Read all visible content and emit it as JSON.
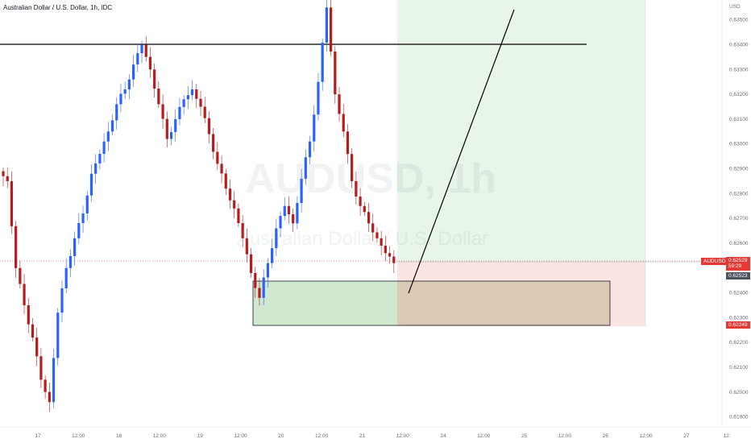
{
  "header": {
    "title": "Australian Dollar / U.S. Dollar, 1h, IDC"
  },
  "watermark": {
    "symbol": "AUDUSD, 1h",
    "name": "Australian Dollar / U.S. Dollar"
  },
  "price_axis": {
    "currency": "USD",
    "ticks": [
      "0.63500",
      "0.63400",
      "0.63300",
      "0.63200",
      "0.63100",
      "0.63000",
      "0.62900",
      "0.62800",
      "0.62700",
      "0.62600",
      "0.62400",
      "0.62300",
      "0.62200",
      "0.62100",
      "0.62000",
      "0.61900"
    ]
  },
  "time_axis": {
    "ticks": [
      "17",
      "12:00",
      "18",
      "12:00",
      "19",
      "12:00",
      "20",
      "12:00",
      "21",
      "12:00",
      "24",
      "12:00",
      "25",
      "12:00",
      "26",
      "12:00",
      "27",
      "12:"
    ]
  },
  "price_labels": {
    "symbol": "AUDUSD",
    "last_price": "0.62529",
    "countdown": "59:29",
    "entry": "0.62523",
    "stop": "0.62249"
  },
  "colors": {
    "bull": "#2962ff",
    "bear": "#b71c1c",
    "target_zone": "#e8f5e9",
    "stop_zone": "#fde4e4",
    "demand_box": "#cfe8cf",
    "tag_red": "#e53935",
    "tag_gray": "#4c525e"
  },
  "chart_data": {
    "type": "candlestick",
    "title": "Australian Dollar / U.S. Dollar, 1h, IDC",
    "ylabel": "USD",
    "ylim": [
      0.6186,
      0.6358
    ],
    "x": [
      "17",
      "12:00",
      "18",
      "12:00",
      "19",
      "12:00",
      "20",
      "12:00",
      "21",
      "12:00",
      "24",
      "12:00",
      "25",
      "12:00",
      "26",
      "12:00",
      "27"
    ],
    "candles_close": [
      0.6285,
      0.625,
      0.6235,
      0.6222,
      0.6205,
      0.6196,
      0.6232,
      0.625,
      0.6262,
      0.6272,
      0.6288,
      0.6296,
      0.6305,
      0.6316,
      0.6322,
      0.6332,
      0.634,
      0.633,
      0.6316,
      0.6302,
      0.631,
      0.6318,
      0.6322,
      0.6315,
      0.6304,
      0.6292,
      0.6282,
      0.6274,
      0.6262,
      0.6248,
      0.6238,
      0.6252,
      0.6266,
      0.6275,
      0.6268,
      0.6286,
      0.6301,
      0.6325,
      0.6355,
      0.632,
      0.6305,
      0.6285,
      0.6275,
      0.6268,
      0.6262,
      0.6256,
      0.6252
    ],
    "resistance_level": 0.6345,
    "demand_zone": [
      0.62249,
      0.6244
    ],
    "position": {
      "entry": 0.62523,
      "stop": 0.62249,
      "target": 0.636
    }
  }
}
